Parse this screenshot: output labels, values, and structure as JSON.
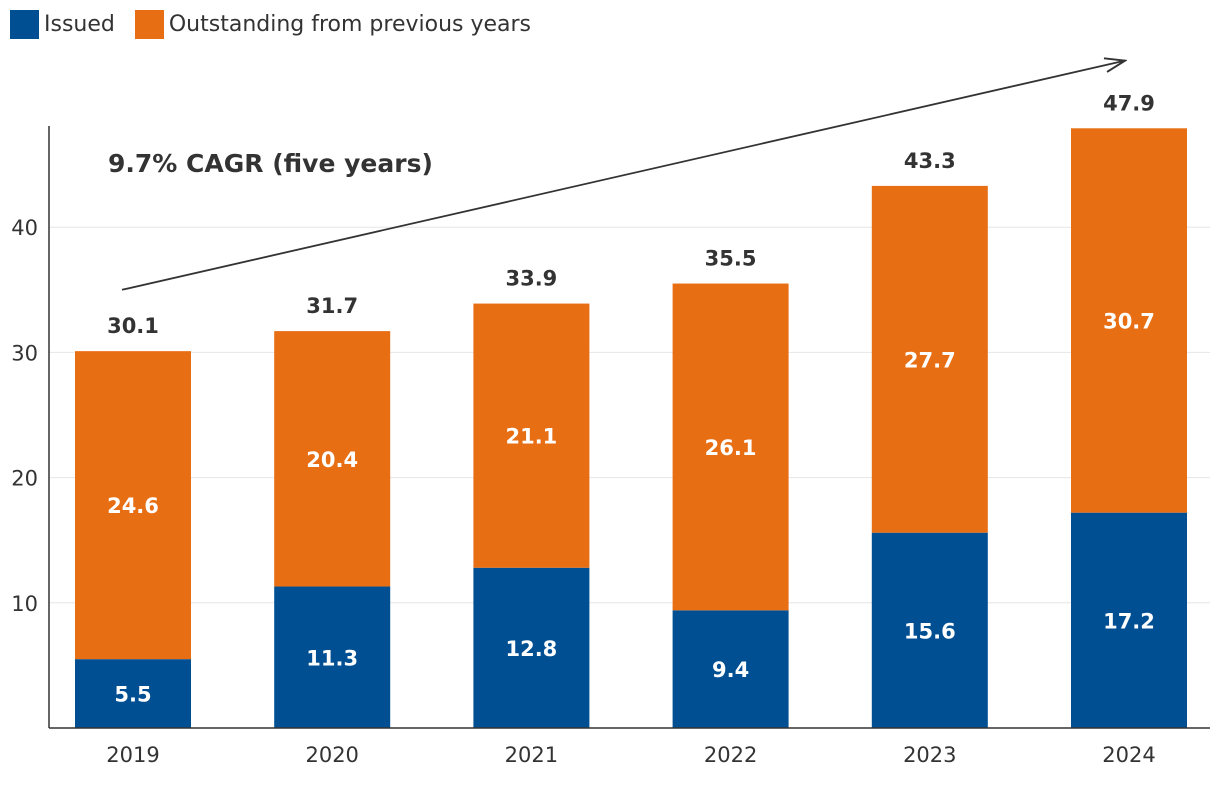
{
  "chart_data": {
    "type": "bar",
    "stacked": true,
    "title": "",
    "xlabel": "",
    "ylabel": "",
    "categories": [
      "2019",
      "2020",
      "2021",
      "2022",
      "2023",
      "2024"
    ],
    "series": [
      {
        "name": "Issued",
        "color": "#004f93",
        "values": [
          5.5,
          11.3,
          12.8,
          9.4,
          15.6,
          17.2
        ],
        "labels": [
          "5.5",
          "11.3",
          "12.8",
          "9.4",
          "15.6",
          "17.2"
        ]
      },
      {
        "name": "Outstanding from previous years",
        "color": "#e86e14",
        "values": [
          24.6,
          20.4,
          21.1,
          26.1,
          27.7,
          30.7
        ],
        "labels": [
          "24.6",
          "20.4",
          "21.1",
          "26.1",
          "27.7",
          "30.7"
        ]
      }
    ],
    "totals": [
      30.1,
      31.7,
      33.9,
      35.5,
      43.3,
      47.9
    ],
    "total_labels": [
      "30.1",
      "31.7",
      "33.9",
      "35.5",
      "43.3",
      "47.9"
    ],
    "ylim": [
      0,
      48
    ],
    "yticks": [
      10,
      20,
      30,
      40
    ],
    "ytick_labels": [
      "10",
      "20",
      "30",
      "40"
    ],
    "grid": true,
    "legend_position": "top-left",
    "annotation": {
      "text": "9.7% CAGR (five years)",
      "arrow_from": {
        "category": "2019",
        "value": 35
      },
      "arrow_to": {
        "category": "2024",
        "value": 53.3
      }
    }
  }
}
